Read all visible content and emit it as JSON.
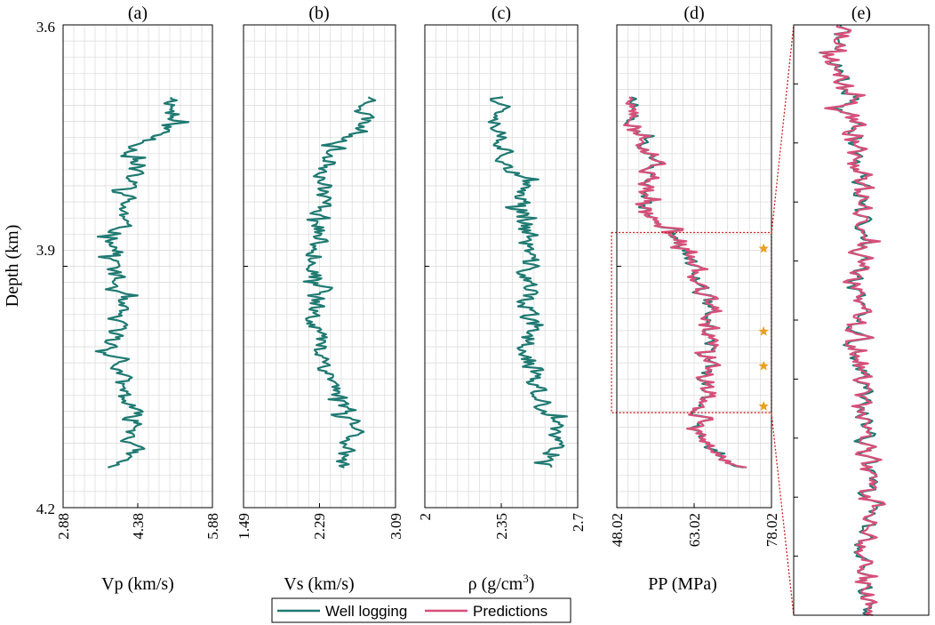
{
  "colors": {
    "well": "#1f7a72",
    "pred": "#d8507a",
    "grid": "#d9d9d9",
    "zoom_box": "#cc1f1f",
    "star": "#e8a11f"
  },
  "chart_data": {
    "type": "line",
    "y_axis": {
      "label": "Depth (km)",
      "ylim": [
        3.6,
        4.2
      ],
      "ticks": [
        "3.6",
        "3.9",
        "4.2"
      ],
      "tick_values": [
        3.6,
        3.9,
        4.2
      ],
      "reversed": true
    },
    "depth_range": [
      3.69,
      4.15
    ],
    "legend": {
      "position": "bottom-center",
      "entries": [
        {
          "label": "Well logging",
          "color_key": "well"
        },
        {
          "label": "Predictions",
          "color_key": "pred"
        }
      ]
    },
    "panels": [
      {
        "id": "a",
        "title": "(a)",
        "xlabel": "Vp (km/s)",
        "xlim": [
          2.88,
          5.88
        ],
        "xticks": [
          "2.88",
          "4.38",
          "5.88"
        ],
        "xtick_values": [
          2.88,
          4.38,
          5.88
        ],
        "series": [
          {
            "name": "Well logging",
            "color_key": "well",
            "seed": 11,
            "jitter": 0.32,
            "trend": [
              [
                3.69,
                5.15
              ],
              [
                3.73,
                4.95
              ],
              [
                3.76,
                4.25
              ],
              [
                3.79,
                4.25
              ],
              [
                3.85,
                4.0
              ],
              [
                3.9,
                3.9
              ],
              [
                3.95,
                3.95
              ],
              [
                4.0,
                3.9
              ],
              [
                4.05,
                4.05
              ],
              [
                4.1,
                4.35
              ],
              [
                4.13,
                4.25
              ],
              [
                4.15,
                3.85
              ]
            ]
          }
        ]
      },
      {
        "id": "b",
        "title": "(b)",
        "xlabel": "Vs (km/s)",
        "xlim": [
          1.49,
          3.09
        ],
        "xticks": [
          "1.49",
          "2.29",
          "3.09"
        ],
        "xtick_values": [
          1.49,
          2.29,
          3.09
        ],
        "series": [
          {
            "name": "Well logging",
            "color_key": "well",
            "seed": 23,
            "jitter": 0.17,
            "trend": [
              [
                3.69,
                2.85
              ],
              [
                3.73,
                2.75
              ],
              [
                3.76,
                2.4
              ],
              [
                3.8,
                2.35
              ],
              [
                3.86,
                2.3
              ],
              [
                3.9,
                2.25
              ],
              [
                3.95,
                2.25
              ],
              [
                4.0,
                2.3
              ],
              [
                4.05,
                2.45
              ],
              [
                4.1,
                2.7
              ],
              [
                4.13,
                2.6
              ],
              [
                4.15,
                2.45
              ]
            ]
          }
        ]
      },
      {
        "id": "c",
        "title": "(c)",
        "xlabel": "ρ (g/cm3)",
        "xlim": [
          2.0,
          2.7
        ],
        "xticks": [
          "2",
          "2.35",
          "2.7"
        ],
        "xtick_values": [
          2.0,
          2.35,
          2.7
        ],
        "series": [
          {
            "name": "Well logging",
            "color_key": "well",
            "seed": 37,
            "jitter": 0.08,
            "trend": [
              [
                3.69,
                2.38
              ],
              [
                3.73,
                2.35
              ],
              [
                3.78,
                2.4
              ],
              [
                3.81,
                2.45
              ],
              [
                3.86,
                2.47
              ],
              [
                3.95,
                2.47
              ],
              [
                4.0,
                2.47
              ],
              [
                4.05,
                2.5
              ],
              [
                4.1,
                2.58
              ],
              [
                4.13,
                2.6
              ],
              [
                4.15,
                2.6
              ]
            ]
          }
        ]
      },
      {
        "id": "d",
        "title": "(d)",
        "xlabel": "PP (MPa)",
        "xlim": [
          48.02,
          78.02
        ],
        "xticks": [
          "48.02",
          "63.02",
          "78.02"
        ],
        "xtick_values": [
          48.02,
          63.02,
          78.02
        ],
        "series": [
          {
            "name": "Well logging",
            "color_key": "well",
            "seed": 51,
            "jitter": 2.6,
            "trend": [
              [
                3.69,
                51.5
              ],
              [
                3.72,
                50.0
              ],
              [
                3.75,
                54.0
              ],
              [
                3.78,
                55.0
              ],
              [
                3.81,
                52.0
              ],
              [
                3.84,
                55.0
              ],
              [
                3.87,
                60.0
              ],
              [
                3.9,
                63.5
              ],
              [
                3.95,
                66.0
              ],
              [
                4.0,
                66.0
              ],
              [
                4.05,
                65.0
              ],
              [
                4.08,
                64.5
              ],
              [
                4.11,
                64.0
              ],
              [
                4.14,
                69.0
              ],
              [
                4.15,
                72.0
              ]
            ]
          },
          {
            "name": "Predictions",
            "color_key": "pred",
            "seed": 51,
            "jitter": 2.6,
            "noise_seed": 97,
            "noise": 0.9,
            "trend": [
              [
                3.69,
                51.5
              ],
              [
                3.72,
                50.0
              ],
              [
                3.75,
                54.0
              ],
              [
                3.78,
                55.0
              ],
              [
                3.81,
                52.0
              ],
              [
                3.84,
                55.0
              ],
              [
                3.87,
                60.0
              ],
              [
                3.9,
                63.5
              ],
              [
                3.95,
                66.0
              ],
              [
                4.0,
                66.0
              ],
              [
                4.05,
                65.0
              ],
              [
                4.08,
                64.5
              ],
              [
                4.11,
                64.0
              ],
              [
                4.14,
                69.0
              ],
              [
                4.15,
                72.0
              ]
            ]
          }
        ],
        "zoom_window": {
          "depth": [
            3.858,
            4.082
          ],
          "x": [
            47.0,
            78.02
          ]
        },
        "markers": [
          {
            "depth": 3.878,
            "x": 76.5
          },
          {
            "depth": 3.981,
            "x": 76.5
          },
          {
            "depth": 4.024,
            "x": 76.5
          },
          {
            "depth": 4.074,
            "x": 76.5
          }
        ]
      },
      {
        "id": "e",
        "title": "(e)",
        "xlabel": "",
        "zoom_of": "d",
        "depth_range": [
          3.858,
          4.082
        ],
        "xlim": [
          53.0,
          73.0
        ],
        "series": [
          {
            "name": "Well logging",
            "color_key": "well",
            "seed": 71,
            "jitter": 2.3,
            "trend": [
              [
                3.858,
                60.5
              ],
              [
                3.87,
                58.5
              ],
              [
                3.88,
                60.5
              ],
              [
                3.9,
                62.0
              ],
              [
                3.92,
                63.0
              ],
              [
                3.94,
                63.0
              ],
              [
                3.96,
                62.5
              ],
              [
                3.98,
                62.0
              ],
              [
                4.0,
                63.5
              ],
              [
                4.02,
                64.0
              ],
              [
                4.04,
                64.0
              ],
              [
                4.06,
                63.0
              ],
              [
                4.082,
                64.0
              ]
            ]
          },
          {
            "name": "Predictions",
            "color_key": "pred",
            "seed": 71,
            "jitter": 2.3,
            "noise_seed": 131,
            "noise": 0.8,
            "trend": [
              [
                3.858,
                60.5
              ],
              [
                3.87,
                58.5
              ],
              [
                3.88,
                60.5
              ],
              [
                3.9,
                62.0
              ],
              [
                3.92,
                63.0
              ],
              [
                3.94,
                63.0
              ],
              [
                3.96,
                62.5
              ],
              [
                3.98,
                62.0
              ],
              [
                4.0,
                63.5
              ],
              [
                4.02,
                64.0
              ],
              [
                4.04,
                64.0
              ],
              [
                4.06,
                63.0
              ],
              [
                4.082,
                64.0
              ]
            ]
          }
        ]
      }
    ]
  }
}
